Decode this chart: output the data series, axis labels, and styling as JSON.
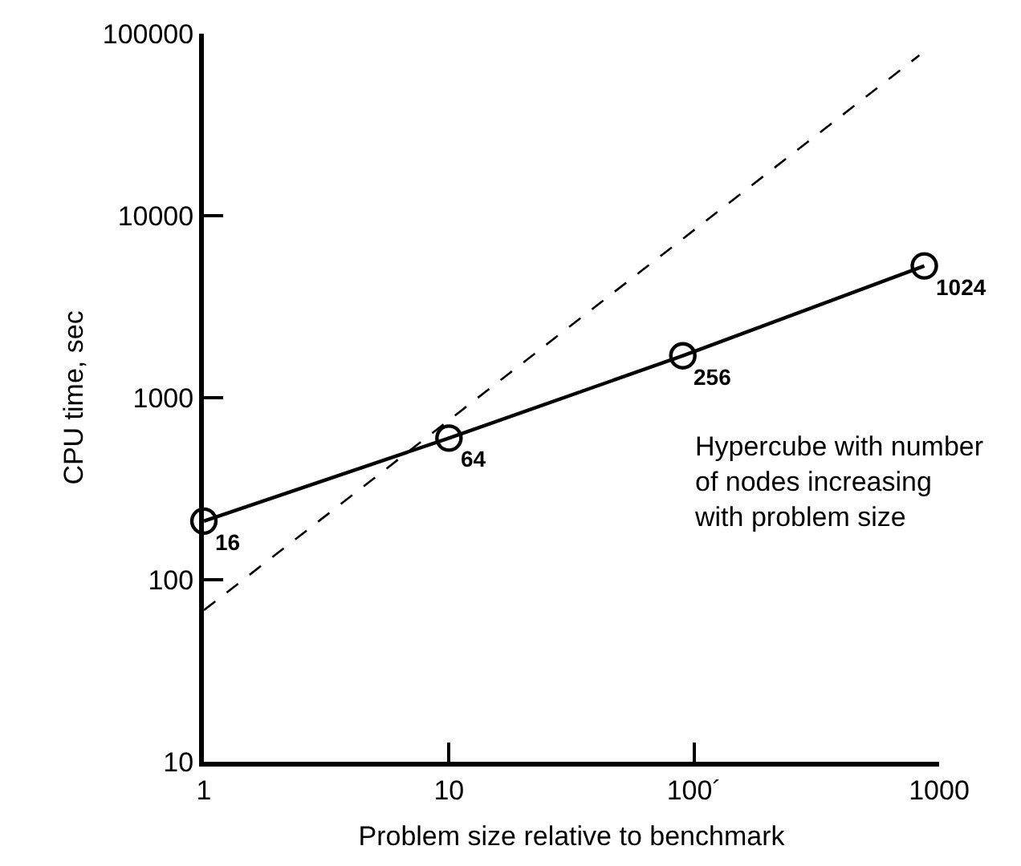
{
  "chart_data": {
    "type": "line",
    "xlabel": "Problem size relative to benchmark",
    "ylabel": "CPU time, sec",
    "log": "xy",
    "legend": false,
    "xlim": [
      1,
      1000
    ],
    "ylim": [
      10,
      100000
    ],
    "xticks": [
      1,
      10,
      {
        "value": 100,
        "label": "100´"
      },
      1000
    ],
    "yticks": [
      10,
      100,
      1000,
      10000,
      100000
    ],
    "series": [
      {
        "name": "Hypercube with number of nodes increasing with problem size",
        "color": "#000000",
        "x": [
          1,
          10,
          90,
          870
        ],
        "values": [
          210,
          600,
          1700,
          5300
        ],
        "marker": "circle",
        "line_style": "solid"
      },
      {
        "color": "#000000",
        "x": [
          1,
          830
        ],
        "values": [
          68,
          76000
        ],
        "marker": "none",
        "line_style": "dashed"
      }
    ],
    "annotations": [
      {
        "text": "16",
        "x": 1,
        "y": 210
      },
      {
        "text": "64",
        "x": 10,
        "y": 600
      },
      {
        "text": "256",
        "x": 90,
        "y": 1700
      },
      {
        "text": "1024",
        "x": 870,
        "y": 5300
      }
    ]
  }
}
